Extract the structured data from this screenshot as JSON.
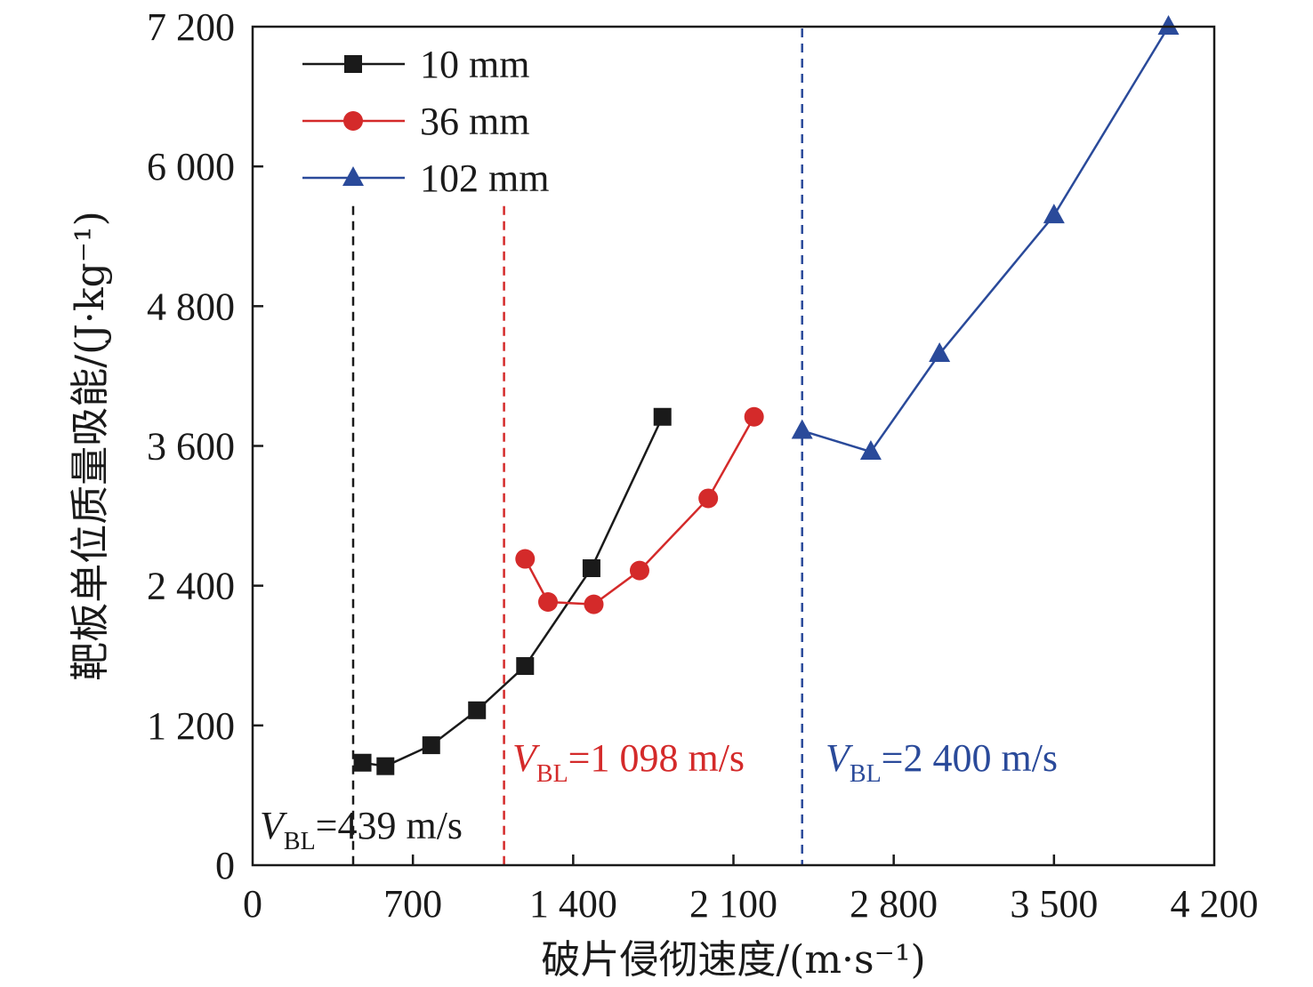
{
  "chart_data": {
    "type": "line",
    "xlabel": "破片侵彻速度/(m·s⁻¹)",
    "ylabel": "靶板单位质量吸能/(J·kg⁻¹)",
    "xlim": [
      0,
      4200
    ],
    "ylim": [
      0,
      7200
    ],
    "xticks": [
      0,
      700,
      1400,
      2100,
      2800,
      3500,
      4200
    ],
    "xtick_labels": [
      "0",
      "700",
      "1 400",
      "2 100",
      "2 800",
      "3 500",
      "4 200"
    ],
    "yticks": [
      0,
      1200,
      2400,
      3600,
      4800,
      6000,
      7200
    ],
    "ytick_labels": [
      "0",
      "1 200",
      "2 400",
      "3 600",
      "4 800",
      "6 000",
      "7 200"
    ],
    "grid": false,
    "legend_position": "top-left",
    "series": [
      {
        "name": "10 mm",
        "color": "#1a1a1a",
        "marker": "square",
        "x": [
          480,
          580,
          780,
          980,
          1190,
          1480,
          1790
        ],
        "y": [
          880,
          850,
          1030,
          1330,
          1710,
          2550,
          3850
        ]
      },
      {
        "name": "36 mm",
        "color": "#d42a2a",
        "marker": "circle",
        "x": [
          1190,
          1290,
          1490,
          1690,
          1990,
          2190
        ],
        "y": [
          2630,
          2260,
          2240,
          2530,
          3150,
          3850
        ]
      },
      {
        "name": "102 mm",
        "color": "#2a4a9a",
        "marker": "triangle",
        "x": [
          2400,
          2700,
          3000,
          3500,
          4000
        ],
        "y": [
          3730,
          3550,
          4390,
          5580,
          7200
        ]
      }
    ],
    "reference_lines": [
      {
        "x": 439,
        "color": "#1a1a1a",
        "label_main": "V",
        "label_sub": "BL",
        "label_text": "=439 m/s"
      },
      {
        "x": 1098,
        "color": "#d42a2a",
        "label_main": "V",
        "label_sub": "BL",
        "label_text": "=1 098 m/s"
      },
      {
        "x": 2400,
        "color": "#2a4a9a",
        "label_main": "V",
        "label_sub": "BL",
        "label_text": "=2 400 m/s"
      }
    ]
  }
}
